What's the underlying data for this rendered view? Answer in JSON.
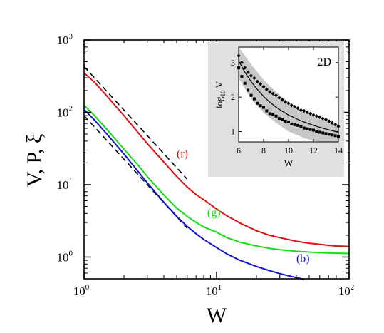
{
  "chart_data": [
    {
      "type": "line",
      "xscale": "log",
      "yscale": "log",
      "xlim": [
        1,
        100
      ],
      "ylim": [
        0.5,
        1000
      ],
      "xlabel": "W",
      "ylabel": "V, P, ξ",
      "grid": false,
      "xticks": [
        {
          "value": 1,
          "base": "10",
          "exp": "0"
        },
        {
          "value": 10,
          "base": "10",
          "exp": "1"
        },
        {
          "value": 100,
          "base": "10",
          "exp": "2"
        }
      ],
      "yticks": [
        {
          "value": 1,
          "base": "10",
          "exp": "0"
        },
        {
          "value": 10,
          "base": "10",
          "exp": "1"
        },
        {
          "value": 100,
          "base": "10",
          "exp": "2"
        },
        {
          "value": 1000,
          "base": "10",
          "exp": "3"
        }
      ],
      "series": [
        {
          "name": "(r)",
          "color": "#e01010",
          "x": [
            1,
            1.2,
            1.5,
            2,
            2.5,
            3,
            4,
            5,
            6,
            7,
            8,
            10,
            12,
            15,
            20,
            25,
            30,
            40,
            50,
            60,
            70,
            80,
            100
          ],
          "y": [
            350,
            260,
            165,
            90,
            55,
            37,
            20.5,
            13,
            9.3,
            7.3,
            6.2,
            4.6,
            3.7,
            2.95,
            2.3,
            2.0,
            1.85,
            1.65,
            1.55,
            1.5,
            1.45,
            1.42,
            1.4
          ]
        },
        {
          "name": "(g)",
          "color": "#10e010",
          "x": [
            1,
            1.2,
            1.5,
            2,
            2.5,
            3,
            4,
            5,
            6,
            7,
            8,
            10,
            12,
            15,
            20,
            25,
            30,
            40,
            50,
            60,
            70,
            80,
            100
          ],
          "y": [
            125,
            90,
            57,
            31,
            19.5,
            13,
            7.2,
            4.75,
            3.65,
            3.0,
            2.6,
            2.2,
            1.85,
            1.6,
            1.42,
            1.32,
            1.26,
            1.2,
            1.17,
            1.15,
            1.14,
            1.13,
            1.12
          ]
        },
        {
          "name": "(b)",
          "color": "#1010d0",
          "x": [
            1,
            1.2,
            1.5,
            2,
            2.5,
            3,
            4,
            5,
            6,
            7,
            8,
            10,
            12,
            15,
            20,
            25,
            30,
            35,
            40,
            46
          ],
          "y": [
            110,
            78,
            49,
            26.5,
            16,
            10.6,
            5.7,
            3.65,
            2.65,
            2.1,
            1.75,
            1.35,
            1.1,
            0.9,
            0.74,
            0.65,
            0.59,
            0.55,
            0.52,
            0.49
          ]
        }
      ],
      "reference_lines": [
        {
          "x": [
            1,
            6
          ],
          "y": [
            430,
            11.9
          ],
          "style": "dashed",
          "color": "#000000"
        },
        {
          "x": [
            1,
            6
          ],
          "y": [
            90,
            2.5
          ],
          "style": "dashed",
          "color": "#000000"
        }
      ],
      "annotations": [
        {
          "text": "(r)",
          "color": "#e01010",
          "x": 5,
          "y": 24
        },
        {
          "text": "(g)",
          "color": "#10e010",
          "x": 8.5,
          "y": 3.7
        },
        {
          "text": "(b)",
          "color": "#1010d0",
          "x": 40,
          "y": 0.85
        }
      ]
    },
    {
      "type": "scatter",
      "inset": true,
      "title": "2D",
      "xlabel": "W",
      "ylabel_base": "log",
      "ylabel_sub": "10",
      "ylabel_tail": " V",
      "xlim": [
        6,
        14
      ],
      "ylim": [
        0.7,
        3.45
      ],
      "xticks": [
        6,
        8,
        10,
        12,
        14
      ],
      "yticks": [
        1,
        2,
        3
      ],
      "band": {
        "color": "#c8c8c8",
        "x": [
          6,
          7,
          8,
          9,
          10,
          11,
          12,
          13,
          14
        ],
        "y_low": [
          2.55,
          1.95,
          1.55,
          1.25,
          1.0,
          0.85,
          0.72,
          0.7,
          0.7
        ],
        "y_high": [
          3.45,
          2.95,
          2.5,
          2.15,
          1.85,
          1.62,
          1.45,
          1.32,
          1.22
        ]
      },
      "fit": {
        "x": [
          6,
          6.5,
          7,
          7.5,
          8,
          8.5,
          9,
          9.5,
          10,
          11,
          12,
          13,
          14
        ],
        "y": [
          3.05,
          2.72,
          2.45,
          2.22,
          2.02,
          1.85,
          1.71,
          1.59,
          1.48,
          1.31,
          1.18,
          1.07,
          0.98
        ]
      },
      "series": [
        {
          "marker": "diamond",
          "x": [
            6.0,
            6.25,
            6.5,
            6.75,
            7.0,
            7.25,
            7.5,
            7.75,
            8.0,
            8.25,
            8.5,
            8.75,
            9.0,
            9.25,
            9.5,
            9.75,
            10.0,
            10.25,
            10.5,
            10.75,
            11.0,
            11.25,
            11.5,
            11.75,
            12.0,
            12.25,
            12.5,
            12.75,
            13.0,
            13.25,
            13.5,
            13.75,
            14.0
          ],
          "y": [
            3.2,
            3.0,
            2.85,
            2.72,
            2.62,
            2.55,
            2.45,
            2.38,
            2.3,
            2.22,
            2.15,
            2.1,
            2.05,
            1.98,
            1.92,
            1.86,
            1.82,
            1.76,
            1.72,
            1.68,
            1.62,
            1.6,
            1.56,
            1.52,
            1.48,
            1.45,
            1.42,
            1.38,
            1.35,
            1.3,
            1.25,
            1.2,
            1.15
          ]
        },
        {
          "marker": "square",
          "x": [
            6.0,
            6.25,
            6.5,
            6.75,
            7.0,
            7.25,
            7.5,
            7.75,
            8.0,
            8.25,
            8.5,
            8.75,
            9.0,
            9.25,
            9.5,
            9.75,
            10.0,
            10.25,
            10.5,
            10.75,
            11.0,
            11.25,
            11.5,
            11.75,
            12.0,
            12.25,
            12.5,
            12.75,
            13.0,
            13.25,
            13.5,
            13.75,
            14.0
          ],
          "y": [
            2.85,
            2.6,
            2.4,
            2.2,
            2.05,
            1.95,
            1.82,
            1.75,
            1.7,
            1.6,
            1.52,
            1.5,
            1.45,
            1.38,
            1.35,
            1.3,
            1.28,
            1.22,
            1.2,
            1.18,
            1.15,
            1.1,
            1.08,
            1.06,
            1.04,
            1.0,
            0.98,
            0.96,
            0.94,
            0.92,
            0.9,
            0.88,
            0.85
          ]
        }
      ]
    }
  ]
}
